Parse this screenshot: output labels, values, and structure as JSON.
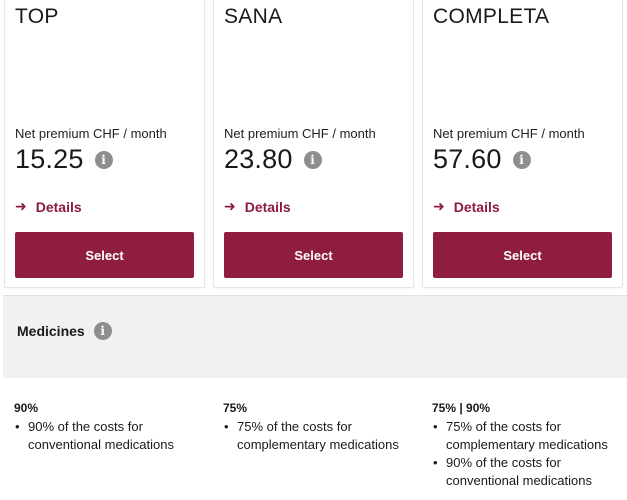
{
  "plans": [
    {
      "name": "TOP",
      "premium_label": "Net premium CHF / month",
      "price": "15.25",
      "details_label": "Details",
      "select_label": "Select"
    },
    {
      "name": "SANA",
      "premium_label": "Net premium CHF / month",
      "price": "23.80",
      "details_label": "Details",
      "select_label": "Select"
    },
    {
      "name": "COMPLETA",
      "premium_label": "Net premium CHF / month",
      "price": "57.60",
      "details_label": "Details",
      "select_label": "Select"
    }
  ],
  "info_icon_glyph": "i",
  "arrow_glyph": "➜",
  "medicines": {
    "title": "Medicines",
    "coverage": [
      {
        "heading": "90%",
        "items": [
          "90% of the costs for conventional medications"
        ]
      },
      {
        "heading": "75%",
        "items": [
          "75% of the costs for complementary medications"
        ]
      },
      {
        "heading": "75% | 90%",
        "items": [
          "75% of the costs for complementary medications",
          "90% of the costs for conventional medications"
        ]
      }
    ]
  },
  "colors": {
    "accent": "#8f1d3f",
    "link": "#8c1c3c",
    "band": "#f1f1f1",
    "info_icon": "#8e8e8e"
  }
}
